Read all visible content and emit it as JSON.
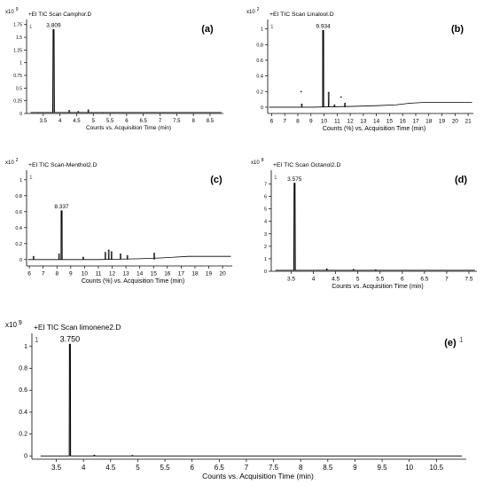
{
  "figure": {
    "panels": [
      {
        "id": "a",
        "panel_label": "(a)",
        "exponent_prefix": "x10",
        "exponent": "9",
        "scan_title": "+EI TIC Scan Camphor.D",
        "corner_mark": "1",
        "xlabel": "Counts vs. Acquisition Time (min)",
        "ylabel": ""
      },
      {
        "id": "b",
        "panel_label": "(b)",
        "exponent_prefix": "x10",
        "exponent": "2",
        "scan_title": "+EI TIC Scan Linalool.D",
        "corner_mark": "1",
        "xlabel": "Counts (%) vs. Acquisition Time (min)",
        "ylabel": ""
      },
      {
        "id": "c",
        "panel_label": "(c)",
        "exponent_prefix": "x10",
        "exponent": "2",
        "scan_title": "+EI TIC Scan-Menthol2.D",
        "corner_mark": "1",
        "xlabel": "Counts (%) vs. Acquisition Time (min)",
        "ylabel": ""
      },
      {
        "id": "d",
        "panel_label": "(d)",
        "exponent_prefix": "x10",
        "exponent": "8",
        "scan_title": "+EI TIC Scan Octanol2.D",
        "corner_mark": "1",
        "xlabel": "Counts vs. Acquisition Time (min)",
        "ylabel": ""
      },
      {
        "id": "e",
        "panel_label": "(e)",
        "exponent_prefix": "x10",
        "exponent": "9",
        "scan_title": "+EI TIC Scan limonene2.D",
        "corner_mark": "1",
        "corner_mark_right": "1",
        "xlabel": "Counts vs. Acquisition Time (min)",
        "ylabel": ""
      }
    ]
  },
  "chart_data": [
    {
      "id": "a",
      "type": "line",
      "xlim": [
        3.0,
        8.9
      ],
      "ylim": [
        0,
        1.85
      ],
      "xticks": [
        3.5,
        4,
        4.5,
        5,
        5.5,
        6,
        6.5,
        7,
        7.5,
        8,
        8.5
      ],
      "xtick_labels": [
        "3.5",
        "4",
        "4.5",
        "5",
        "5.5",
        "6",
        "6.5",
        "7",
        "7.5",
        "8",
        "8.5"
      ],
      "yticks": [
        0,
        0.25,
        0.5,
        0.75,
        1,
        1.25,
        1.5,
        1.75
      ],
      "ytick_labels": [
        "0",
        "0.25",
        "0.5",
        "0.75",
        "1",
        "1.25",
        "1.5",
        "1.75"
      ],
      "baseline": 0.02,
      "peaks": [
        {
          "x": 3.809,
          "y": 1.65,
          "w": 0.05,
          "fill": true
        },
        {
          "x": 3.35,
          "y": 0.02,
          "w": 0.02
        },
        {
          "x": 4.28,
          "y": 0.06,
          "w": 0.02
        },
        {
          "x": 4.55,
          "y": 0.04,
          "w": 0.02
        },
        {
          "x": 4.85,
          "y": 0.07,
          "w": 0.02
        },
        {
          "x": 5.3,
          "y": 0.02,
          "w": 0.02
        }
      ],
      "annotations": [
        {
          "x": 3.809,
          "y": 1.65,
          "text": "3.809"
        }
      ]
    },
    {
      "id": "b",
      "type": "line",
      "xlim": [
        5.7,
        21.4
      ],
      "ylim": [
        -0.08,
        1.12
      ],
      "xticks": [
        6,
        7,
        8,
        9,
        10,
        11,
        12,
        13,
        14,
        15,
        16,
        17,
        18,
        19,
        20,
        21
      ],
      "xtick_labels": [
        "6",
        "7",
        "8",
        "9",
        "10",
        "11",
        "12",
        "13",
        "14",
        "15",
        "16",
        "17",
        "18",
        "19",
        "20",
        "21"
      ],
      "yticks": [
        0,
        0.2,
        0.4,
        0.6,
        0.8,
        1
      ],
      "ytick_labels": [
        "0",
        "0.2",
        "0.4",
        "0.6",
        "0.8",
        "1"
      ],
      "baseline_points": [
        [
          5.8,
          0.0
        ],
        [
          9.0,
          0.0
        ],
        [
          12.0,
          0.01
        ],
        [
          14.0,
          0.02
        ],
        [
          15.5,
          0.03
        ],
        [
          16.5,
          0.05
        ],
        [
          17.5,
          0.06
        ],
        [
          21.3,
          0.06
        ]
      ],
      "peaks": [
        {
          "x": 9.934,
          "y": 0.98,
          "w": 0.08
        },
        {
          "x": 10.35,
          "y": 0.19,
          "w": 0.05
        },
        {
          "x": 8.3,
          "y": 0.04,
          "w": 0.05
        },
        {
          "x": 11.6,
          "y": 0.05,
          "w": 0.05
        },
        {
          "x": 10.8,
          "y": 0.03,
          "w": 0.05
        }
      ],
      "dots": [
        [
          8.25,
          0.2
        ],
        [
          11.3,
          0.13
        ]
      ],
      "annotations": [
        {
          "x": 9.934,
          "y": 0.98,
          "text": "9.934"
        }
      ]
    },
    {
      "id": "c",
      "type": "line",
      "xlim": [
        5.8,
        20.7
      ],
      "ylim": [
        -0.08,
        1.12
      ],
      "xticks": [
        6,
        7,
        8,
        9,
        10,
        11,
        12,
        13,
        14,
        15,
        16,
        17,
        18,
        19,
        20
      ],
      "xtick_labels": [
        "6",
        "7",
        "8",
        "9",
        "10",
        "11",
        "12",
        "13",
        "14",
        "15",
        "16",
        "17",
        "18",
        "19",
        "20"
      ],
      "yticks": [
        0,
        0.2,
        0.4,
        0.6,
        0.8,
        1
      ],
      "ytick_labels": [
        "0",
        "0.2",
        "0.4",
        "0.6",
        "0.8",
        "1"
      ],
      "baseline_points": [
        [
          5.9,
          0.0
        ],
        [
          11.0,
          0.0
        ],
        [
          14.0,
          0.01
        ],
        [
          15.5,
          0.02
        ],
        [
          16.5,
          0.03
        ],
        [
          17.5,
          0.04
        ],
        [
          20.6,
          0.04
        ]
      ],
      "peaks": [
        {
          "x": 8.337,
          "y": 0.61,
          "w": 0.08
        },
        {
          "x": 8.15,
          "y": 0.07,
          "w": 0.05
        },
        {
          "x": 11.5,
          "y": 0.09,
          "w": 0.05
        },
        {
          "x": 11.75,
          "y": 0.12,
          "w": 0.05
        },
        {
          "x": 11.95,
          "y": 0.1,
          "w": 0.05
        },
        {
          "x": 12.6,
          "y": 0.07,
          "w": 0.05
        },
        {
          "x": 13.1,
          "y": 0.05,
          "w": 0.05
        },
        {
          "x": 15.05,
          "y": 0.08,
          "w": 0.05
        },
        {
          "x": 6.3,
          "y": 0.04,
          "w": 0.05
        },
        {
          "x": 9.9,
          "y": 0.03,
          "w": 0.05
        }
      ],
      "annotations": [
        {
          "x": 8.337,
          "y": 0.61,
          "text": "8.337"
        }
      ]
    },
    {
      "id": "d",
      "type": "line",
      "xlim": [
        3.05,
        7.68
      ],
      "ylim": [
        0,
        8.1
      ],
      "xticks": [
        3.5,
        4,
        4.5,
        5,
        5.5,
        6,
        6.5,
        7,
        7.5
      ],
      "xtick_labels": [
        "3.5",
        "4",
        "4.5",
        "5",
        "5.5",
        "6",
        "6.5",
        "7",
        "7.5"
      ],
      "yticks": [
        0,
        1,
        2,
        3,
        4,
        5,
        6,
        7
      ],
      "ytick_labels": [
        "0",
        "1",
        "2",
        "3",
        "4",
        "5",
        "6",
        "7"
      ],
      "baseline": 0.08,
      "peaks": [
        {
          "x": 3.575,
          "y": 7.05,
          "w": 0.035,
          "fill": true
        },
        {
          "x": 4.3,
          "y": 0.2,
          "w": 0.015
        },
        {
          "x": 4.9,
          "y": 0.15,
          "w": 0.015
        },
        {
          "x": 5.4,
          "y": 0.12,
          "w": 0.015
        }
      ],
      "annotations": [
        {
          "x": 3.575,
          "y": 7.05,
          "text": "3.575"
        }
      ]
    },
    {
      "id": "e",
      "type": "line",
      "xlim": [
        3.05,
        11.05
      ],
      "ylim": [
        -0.03,
        1.12
      ],
      "xticks": [
        3.5,
        4,
        4.5,
        5,
        5.5,
        6,
        6.5,
        7,
        7.5,
        8,
        8.5,
        9,
        9.5,
        10,
        10.5
      ],
      "xtick_labels": [
        "3.5",
        "4",
        "4.5",
        "5",
        "5.5",
        "6",
        "6.5",
        "7",
        "7.5",
        "8",
        "8.5",
        "9",
        "9.5",
        "10",
        "10.5"
      ],
      "yticks": [
        0,
        0.2,
        0.4,
        0.6,
        0.8,
        1
      ],
      "ytick_labels": [
        "0",
        "0.2",
        "0.4",
        "0.6",
        "0.8",
        "1"
      ],
      "baseline": 0.0,
      "peaks": [
        {
          "x": 3.75,
          "y": 1.02,
          "w": 0.025,
          "fill": true
        },
        {
          "x": 4.2,
          "y": 0.008,
          "w": 0.02
        },
        {
          "x": 4.9,
          "y": 0.006,
          "w": 0.02
        }
      ],
      "annotations": [
        {
          "x": 3.75,
          "y": 1.02,
          "text": "3.750"
        }
      ]
    }
  ]
}
